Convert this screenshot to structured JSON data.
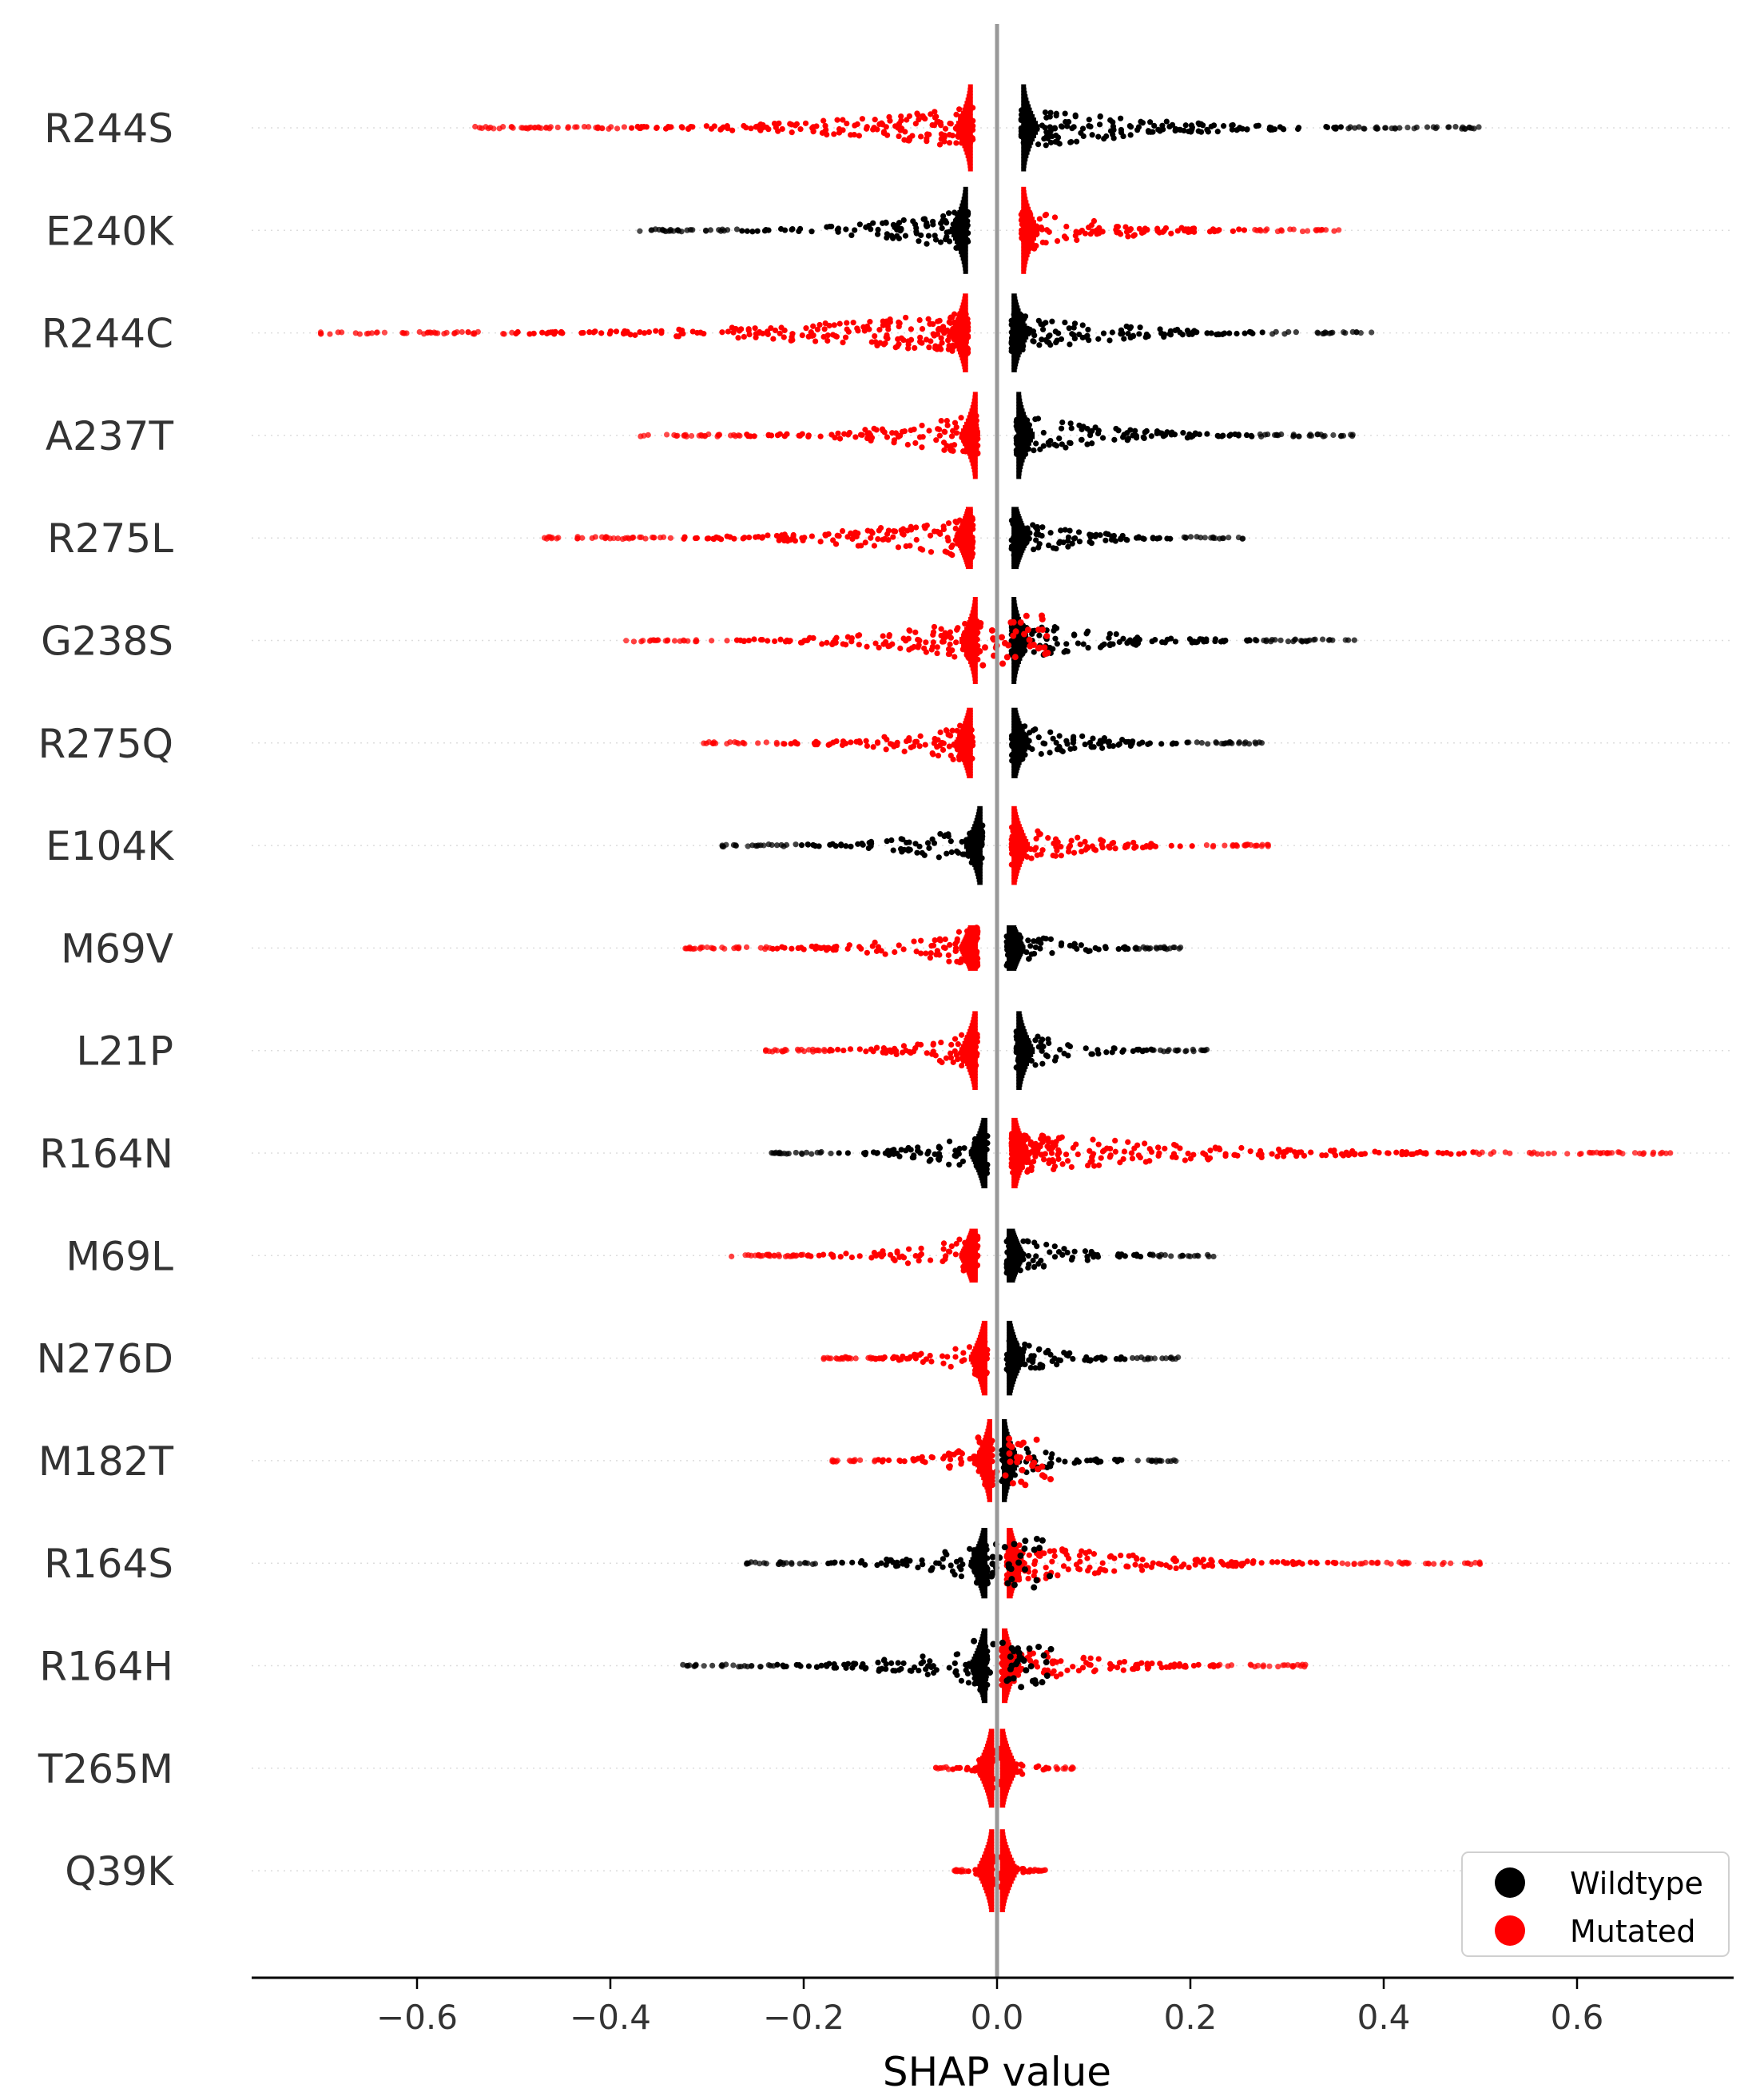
{
  "chart_data": {
    "type": "scatter",
    "subtype": "beeswarm",
    "xlabel": "SHAP value",
    "xlim": [
      -0.77,
      0.77
    ],
    "xticks": [
      -0.6,
      -0.4,
      -0.2,
      0.0,
      0.2,
      0.4,
      0.6
    ],
    "xtick_labels": [
      "−0.6",
      "−0.4",
      "−0.2",
      "0.0",
      "0.2",
      "0.4",
      "0.6"
    ],
    "zero_line": true,
    "row_gridlines": "dotted",
    "legend": {
      "placement": "bottom-right",
      "entries": [
        {
          "label": "Wildtype",
          "color": "#000000"
        },
        {
          "label": "Mutated",
          "color": "#ff0000"
        }
      ]
    },
    "colors": {
      "wildtype": "#000000",
      "mutated": "#ff0000",
      "zero_line": "#999999",
      "axis": "#000000",
      "text": "#333333"
    },
    "features": [
      {
        "name": "R244S",
        "neg_class": "mutated",
        "pos_class": "wildtype",
        "neg_min": -0.54,
        "pos_max": 0.5,
        "neg_core": -0.025,
        "pos_core": 0.025,
        "core_height": 1.0,
        "mix": 0
      },
      {
        "name": "E240K",
        "neg_class": "wildtype",
        "pos_class": "mutated",
        "neg_min": -0.37,
        "pos_max": 0.355,
        "neg_core": -0.03,
        "pos_core": 0.025,
        "core_height": 1.0,
        "mix": 0
      },
      {
        "name": "R244C",
        "neg_class": "mutated",
        "pos_class": "wildtype",
        "neg_min": -0.7,
        "pos_max": 0.39,
        "neg_core": -0.03,
        "pos_core": 0.015,
        "core_height": 0.9,
        "mix": 0
      },
      {
        "name": "A237T",
        "neg_class": "mutated",
        "pos_class": "wildtype",
        "neg_min": -0.37,
        "pos_max": 0.375,
        "neg_core": -0.02,
        "pos_core": 0.02,
        "core_height": 1.0,
        "mix": 0
      },
      {
        "name": "R275L",
        "neg_class": "mutated",
        "pos_class": "wildtype",
        "neg_min": -0.47,
        "pos_max": 0.255,
        "neg_core": -0.025,
        "pos_core": 0.015,
        "core_height": 0.7,
        "mix": 0
      },
      {
        "name": "G238S",
        "neg_class": "mutated",
        "pos_class": "wildtype",
        "neg_min": -0.385,
        "pos_max": 0.37,
        "neg_core": -0.02,
        "pos_core": 0.015,
        "core_height": 1.0,
        "mix": 1
      },
      {
        "name": "R275Q",
        "neg_class": "mutated",
        "pos_class": "wildtype",
        "neg_min": -0.305,
        "pos_max": 0.275,
        "neg_core": -0.025,
        "pos_core": 0.015,
        "core_height": 0.8,
        "mix": 0
      },
      {
        "name": "E104K",
        "neg_class": "wildtype",
        "pos_class": "mutated",
        "neg_min": -0.285,
        "pos_max": 0.29,
        "neg_core": -0.015,
        "pos_core": 0.015,
        "core_height": 0.9,
        "mix": 0
      },
      {
        "name": "M69V",
        "neg_class": "mutated",
        "pos_class": "wildtype",
        "neg_min": -0.325,
        "pos_max": 0.195,
        "neg_core": -0.02,
        "pos_core": 0.01,
        "core_height": 0.5,
        "mix": 0
      },
      {
        "name": "L21P",
        "neg_class": "mutated",
        "pos_class": "wildtype",
        "neg_min": -0.245,
        "pos_max": 0.22,
        "neg_core": -0.02,
        "pos_core": 0.02,
        "core_height": 0.9,
        "mix": 0
      },
      {
        "name": "R164N",
        "neg_class": "wildtype",
        "pos_class": "mutated",
        "neg_min": -0.235,
        "pos_max": 0.7,
        "neg_core": -0.01,
        "pos_core": 0.015,
        "core_height": 0.8,
        "mix": 0
      },
      {
        "name": "M69L",
        "neg_class": "mutated",
        "pos_class": "wildtype",
        "neg_min": -0.275,
        "pos_max": 0.225,
        "neg_core": -0.02,
        "pos_core": 0.01,
        "core_height": 0.6,
        "mix": 0
      },
      {
        "name": "N276D",
        "neg_class": "mutated",
        "pos_class": "wildtype",
        "neg_min": -0.18,
        "pos_max": 0.19,
        "neg_core": -0.01,
        "pos_core": 0.01,
        "core_height": 0.85,
        "mix": 0
      },
      {
        "name": "M182T",
        "neg_class": "mutated",
        "pos_class": "wildtype",
        "neg_min": -0.175,
        "pos_max": 0.185,
        "neg_core": -0.005,
        "pos_core": 0.005,
        "core_height": 0.95,
        "mix": 1
      },
      {
        "name": "R164S",
        "neg_class": "wildtype",
        "pos_class": "mutated",
        "neg_min": -0.26,
        "pos_max": 0.5,
        "neg_core": -0.01,
        "pos_core": 0.01,
        "core_height": 0.8,
        "mix": 1
      },
      {
        "name": "R164H",
        "neg_class": "wildtype",
        "pos_class": "mutated",
        "neg_min": -0.325,
        "pos_max": 0.325,
        "neg_core": -0.01,
        "pos_core": 0.005,
        "core_height": 0.85,
        "mix": 1
      },
      {
        "name": "T265M",
        "neg_class": "mutated",
        "pos_class": "mutated",
        "neg_min": -0.065,
        "pos_max": 0.08,
        "neg_core": -0.003,
        "pos_core": 0.003,
        "core_height": 0.9,
        "mix": 0
      },
      {
        "name": "Q39K",
        "neg_class": "mutated",
        "pos_class": "mutated",
        "neg_min": -0.045,
        "pos_max": 0.05,
        "neg_core": -0.003,
        "pos_core": 0.003,
        "core_height": 0.95,
        "mix": 0
      }
    ]
  }
}
